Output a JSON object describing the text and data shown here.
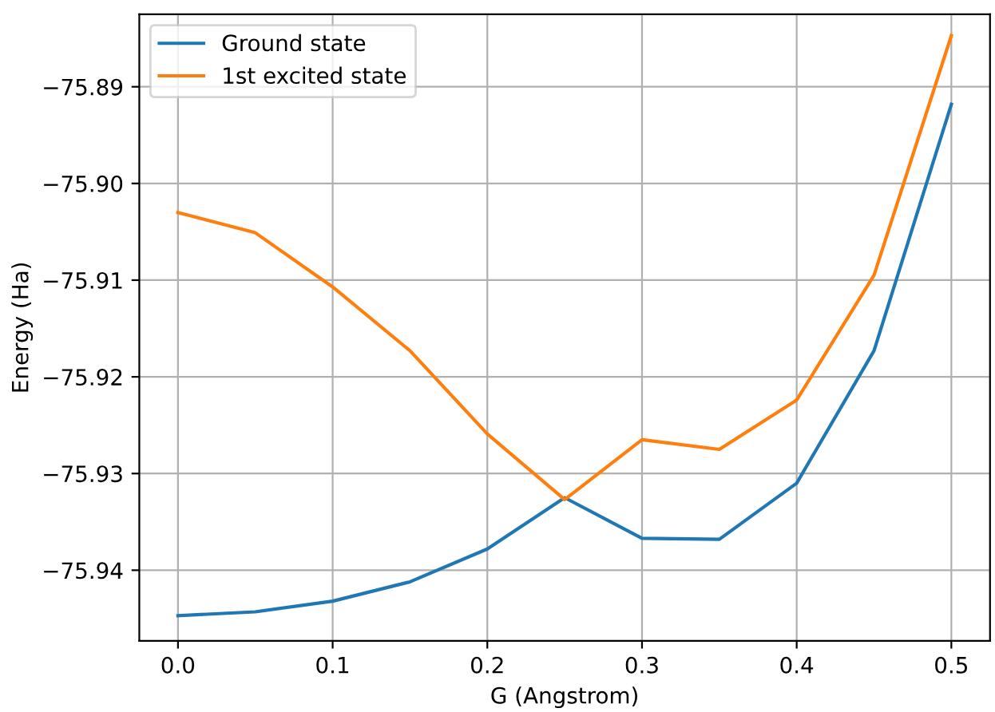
{
  "chart_data": {
    "type": "line",
    "xlabel": "G (Angstrom)",
    "ylabel": "Energy (Ha)",
    "x": [
      0.0,
      0.05,
      0.1,
      0.15,
      0.2,
      0.25,
      0.3,
      0.35,
      0.4,
      0.45,
      0.5
    ],
    "series": [
      {
        "name": "Ground state",
        "color": "#1f77b4",
        "values": [
          -75.9447,
          -75.9443,
          -75.9432,
          -75.9412,
          -75.9378,
          -75.9325,
          -75.9367,
          -75.9368,
          -75.931,
          -75.9173,
          -75.8918
        ]
      },
      {
        "name": "1st excited state",
        "color": "#ff7f0e",
        "values": [
          -75.903,
          -75.9051,
          -75.9107,
          -75.9173,
          -75.9259,
          -75.9327,
          -75.9265,
          -75.9275,
          -75.9224,
          -75.9095,
          -75.8847
        ]
      }
    ],
    "xlim": [
      -0.025,
      0.525
    ],
    "ylim": [
      -75.9473,
      -75.8825
    ],
    "xticks": [
      {
        "value": 0,
        "label": "0.0"
      },
      0.1,
      0.2,
      0.3,
      0.4,
      0.5
    ],
    "yticks": [
      {
        "value": -75.94,
        "label": "−75.94"
      },
      {
        "value": -75.93,
        "label": "−75.93"
      },
      {
        "value": -75.92,
        "label": "−75.92"
      },
      {
        "value": -75.91,
        "label": "−75.91"
      },
      {
        "value": -75.9,
        "label": "−75.90"
      },
      {
        "value": -75.89,
        "label": "−75.89"
      }
    ],
    "grid": true,
    "legend": "top left",
    "marker": "none",
    "line_style": "solid"
  }
}
